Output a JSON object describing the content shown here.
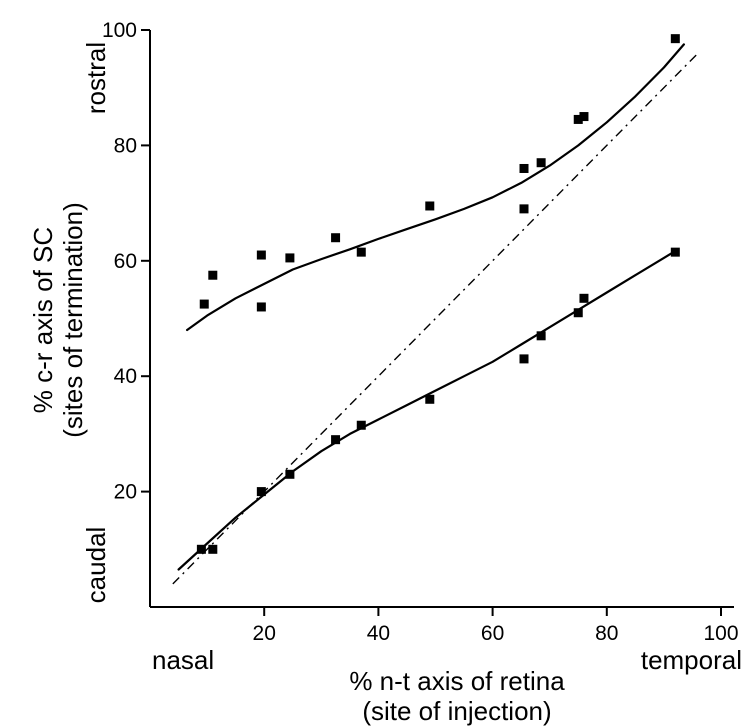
{
  "chart_data": {
    "type": "scatter",
    "xlabel": [
      "% n-t axis of retina",
      "(site of injection)"
    ],
    "ylabel": [
      "% c-r axis of SC",
      "(sites of termination)"
    ],
    "x_end_labels": {
      "left": "nasal",
      "right": "temporal"
    },
    "y_end_labels": {
      "bottom": "caudal",
      "top": "rostral"
    },
    "xlim": [
      0,
      100
    ],
    "ylim": [
      0,
      100
    ],
    "xticks": [
      20,
      40,
      60,
      80,
      100
    ],
    "yticks": [
      20,
      40,
      60,
      80,
      100
    ],
    "grid": false,
    "series": [
      {
        "points": [
          [
            9.5,
            52.5
          ],
          [
            11.0,
            57.5
          ],
          [
            19.5,
            61.0
          ],
          [
            19.5,
            52.0
          ],
          [
            24.5,
            60.5
          ],
          [
            32.5,
            64.0
          ],
          [
            37.0,
            61.5
          ],
          [
            49.0,
            69.5
          ],
          [
            65.5,
            76.0
          ],
          [
            65.5,
            69.0
          ],
          [
            68.5,
            77.0
          ],
          [
            75.0,
            84.5
          ],
          [
            76.0,
            85.0
          ],
          [
            92.0,
            98.5
          ]
        ],
        "fit": [
          [
            6.5,
            48.0
          ],
          [
            10,
            50.5
          ],
          [
            15,
            53.5
          ],
          [
            20,
            56.0
          ],
          [
            25,
            58.5
          ],
          [
            30,
            60.3
          ],
          [
            35,
            62.0
          ],
          [
            40,
            63.8
          ],
          [
            45,
            65.5
          ],
          [
            50,
            67.2
          ],
          [
            55,
            69.0
          ],
          [
            60,
            71.0
          ],
          [
            65,
            73.5
          ],
          [
            70,
            76.5
          ],
          [
            75,
            80.0
          ],
          [
            80,
            84.0
          ],
          [
            85,
            88.5
          ],
          [
            90,
            93.5
          ],
          [
            93.5,
            97.5
          ]
        ]
      },
      {
        "points": [
          [
            9.0,
            10.0
          ],
          [
            11.0,
            10.0
          ],
          [
            19.5,
            20.0
          ],
          [
            24.5,
            23.0
          ],
          [
            32.5,
            29.0
          ],
          [
            37.0,
            31.5
          ],
          [
            49.0,
            36.0
          ],
          [
            65.5,
            43.0
          ],
          [
            68.5,
            47.0
          ],
          [
            75.0,
            51.0
          ],
          [
            76.0,
            53.5
          ],
          [
            92.0,
            61.5
          ]
        ],
        "fit": [
          [
            5,
            6.5
          ],
          [
            10,
            11.0
          ],
          [
            15,
            15.5
          ],
          [
            20,
            19.5
          ],
          [
            25,
            23.5
          ],
          [
            30,
            27.0
          ],
          [
            35,
            30.0
          ],
          [
            40,
            32.5
          ],
          [
            45,
            35.0
          ],
          [
            50,
            37.5
          ],
          [
            55,
            40.0
          ],
          [
            60,
            42.5
          ],
          [
            65,
            45.5
          ],
          [
            70,
            48.5
          ],
          [
            75,
            51.5
          ],
          [
            80,
            54.5
          ],
          [
            85,
            57.5
          ],
          [
            90,
            60.5
          ],
          [
            92.5,
            62.0
          ]
        ]
      }
    ],
    "reference_line": [
      [
        4,
        4
      ],
      [
        96,
        96
      ]
    ]
  }
}
